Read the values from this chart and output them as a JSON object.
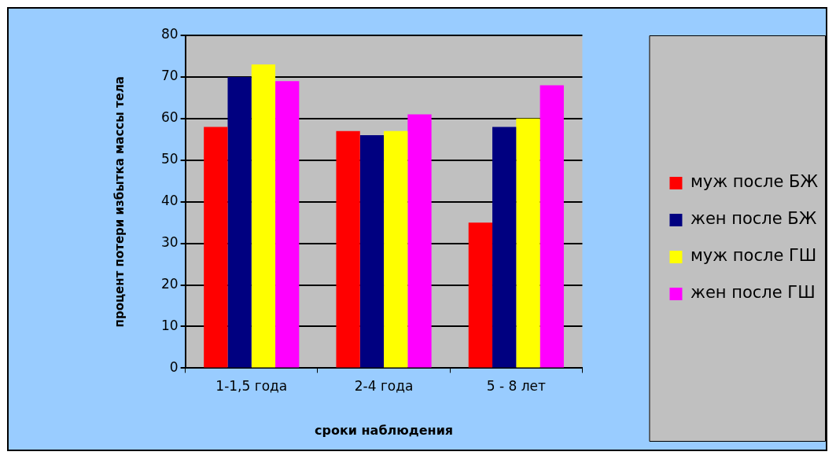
{
  "chart_data": {
    "type": "bar",
    "xlabel": "сроки наблюдения",
    "ylabel": "процент потери избытка массы тела",
    "categories": [
      "1-1,5 года",
      "2-4 года",
      "5 - 8 лет"
    ],
    "series": [
      {
        "name": "муж после БЖ",
        "color": "#ff0000",
        "values": [
          58,
          57,
          35
        ]
      },
      {
        "name": "жен после БЖ",
        "color": "#000080",
        "values": [
          70,
          56,
          58
        ]
      },
      {
        "name": "муж после ГШ",
        "color": "#ffff00",
        "values": [
          73,
          57,
          60
        ]
      },
      {
        "name": "жен после ГШ",
        "color": "#ff00ff",
        "values": [
          69,
          61,
          68
        ]
      }
    ],
    "ylim": [
      0,
      80
    ],
    "yticks": [
      0,
      10,
      20,
      30,
      40,
      50,
      60,
      70,
      80
    ],
    "grid": "y",
    "legend": "right"
  }
}
